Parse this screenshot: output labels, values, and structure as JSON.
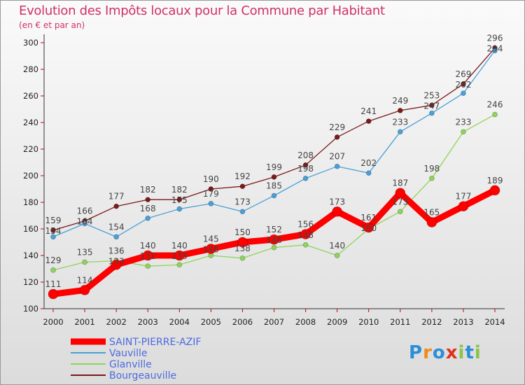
{
  "header": {
    "title": "Evolution des Impôts locaux pour la Commune par Habitant",
    "subtitle": "(en € et par an)"
  },
  "logo": "Proxiti",
  "chart_data": {
    "type": "line",
    "title": "Evolution des Impôts locaux pour la Commune par Habitant",
    "subtitle": "(en € et par an)",
    "x": [
      2000,
      2001,
      2002,
      2003,
      2004,
      2005,
      2006,
      2007,
      2008,
      2009,
      2010,
      2011,
      2012,
      2013,
      2014
    ],
    "ylim": [
      100,
      300
    ],
    "yticks": [
      100,
      120,
      140,
      160,
      180,
      200,
      220,
      240,
      260,
      280,
      300
    ],
    "grid": false,
    "legend": "bottom-left",
    "series": [
      {
        "name": "SAINT-PIERRE-AZIF",
        "color": "#ff0000",
        "values": [
          111,
          114,
          133,
          140,
          140,
          145,
          150,
          152,
          156,
          173,
          161,
          187,
          165,
          177,
          189
        ]
      },
      {
        "name": "Vauville",
        "color": "#4a9fd8",
        "values": [
          154,
          164,
          154,
          168,
          175,
          179,
          173,
          185,
          198,
          207,
          202,
          233,
          247,
          262,
          294
        ]
      },
      {
        "name": "Glanville",
        "color": "#8fd45a",
        "values": [
          129,
          135,
          136,
          132,
          133,
          140,
          138,
          146,
          148,
          140,
          160,
          173,
          198,
          233,
          246
        ]
      },
      {
        "name": "Bourgeauville",
        "color": "#7a1a1a",
        "values": [
          159,
          166,
          177,
          182,
          182,
          190,
          192,
          199,
          208,
          229,
          241,
          249,
          253,
          269,
          296
        ]
      }
    ]
  }
}
